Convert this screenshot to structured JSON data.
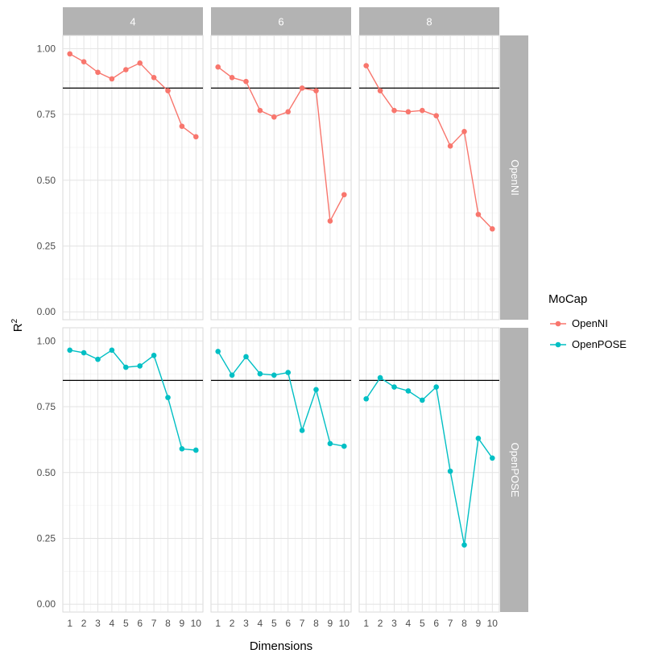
{
  "chart_data": {
    "type": "line",
    "facet_columns": [
      "4",
      "6",
      "8"
    ],
    "facet_rows": [
      "OpenNI",
      "OpenPOSE"
    ],
    "x": [
      1,
      2,
      3,
      4,
      5,
      6,
      7,
      8,
      9,
      10
    ],
    "xlim": [
      0.5,
      10.5
    ],
    "ylim": [
      -0.03,
      1.05
    ],
    "y_ticks": [
      "0.00",
      "0.25",
      "0.50",
      "0.75",
      "1.00"
    ],
    "y_tick_values": [
      0,
      0.25,
      0.5,
      0.75,
      1.0
    ],
    "x_ticks": [
      "1",
      "2",
      "3",
      "4",
      "5",
      "6",
      "7",
      "8",
      "9",
      "10"
    ],
    "reference_line": 0.85,
    "xlabel": "Dimensions",
    "ylabel": "R",
    "ylabel_superscript": "2",
    "grid": true,
    "legend": {
      "title": "MoCap",
      "placement": "right",
      "entries": [
        "OpenNI",
        "OpenPOSE"
      ]
    },
    "colors": {
      "OpenNI": "#f8766d",
      "OpenPOSE": "#00bfc4",
      "strip": "#b3b3b3",
      "reference": "#000000"
    },
    "panels": [
      {
        "column": "4",
        "row": "OpenNI",
        "series": "OpenNI",
        "values": [
          0.98,
          0.95,
          0.91,
          0.885,
          0.92,
          0.945,
          0.89,
          0.84,
          0.705,
          0.665
        ]
      },
      {
        "column": "6",
        "row": "OpenNI",
        "series": "OpenNI",
        "values": [
          0.93,
          0.89,
          0.875,
          0.765,
          0.74,
          0.76,
          0.85,
          0.84,
          0.345,
          0.445
        ]
      },
      {
        "column": "8",
        "row": "OpenNI",
        "series": "OpenNI",
        "values": [
          0.935,
          0.84,
          0.765,
          0.76,
          0.765,
          0.745,
          0.63,
          0.685,
          0.37,
          0.315
        ]
      },
      {
        "column": "4",
        "row": "OpenPOSE",
        "series": "OpenPOSE",
        "values": [
          0.965,
          0.955,
          0.93,
          0.965,
          0.9,
          0.905,
          0.945,
          0.785,
          0.59,
          0.585
        ]
      },
      {
        "column": "6",
        "row": "OpenPOSE",
        "series": "OpenPOSE",
        "values": [
          0.96,
          0.87,
          0.94,
          0.875,
          0.87,
          0.88,
          0.66,
          0.815,
          0.61,
          0.6
        ]
      },
      {
        "column": "8",
        "row": "OpenPOSE",
        "series": "OpenPOSE",
        "values": [
          0.78,
          0.86,
          0.825,
          0.81,
          0.775,
          0.825,
          0.505,
          0.225,
          0.63,
          0.555
        ]
      }
    ]
  }
}
